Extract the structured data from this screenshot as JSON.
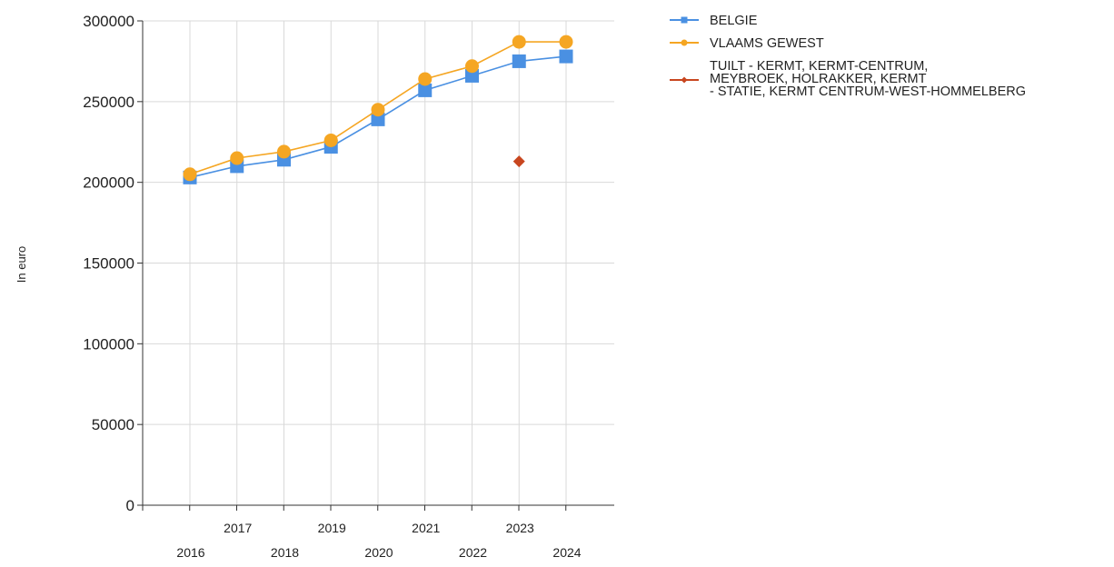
{
  "chart_data": {
    "type": "line",
    "title": "",
    "xlabel": "",
    "ylabel": "In euro",
    "categories": [
      "2016",
      "2017",
      "2018",
      "2019",
      "2020",
      "2021",
      "2022",
      "2023",
      "2024"
    ],
    "ylim": [
      0,
      300000
    ],
    "yticks": [
      "0",
      "50000",
      "100000",
      "150000",
      "200000",
      "250000",
      "300000"
    ],
    "grid": true,
    "legend_position": "right",
    "series": [
      {
        "name": "BELGIE",
        "color": "#4a90e2",
        "marker": "square",
        "values": [
          203000,
          210000,
          214000,
          222000,
          239000,
          257000,
          266000,
          275000,
          278000
        ]
      },
      {
        "name": "VLAAMS GEWEST",
        "color": "#f5a623",
        "marker": "circle",
        "values": [
          205000,
          215000,
          219000,
          226000,
          245000,
          264000,
          272000,
          287000,
          287000
        ]
      },
      {
        "name": "TUILT - KERMT, KERMT-CENTRUM, MEYBROEK, HOLRAKKER, KERMT - STATIE, KERMT CENTRUM-WEST-HOMMELBERG",
        "name_lines": [
          "TUILT - KERMT, KERMT-CENTRUM,",
          "MEYBROEK, HOLRAKKER, KERMT",
          "- STATIE, KERMT CENTRUM-WEST-HOMMELBERG"
        ],
        "color": "#c8461f",
        "marker": "diamond",
        "values": [
          null,
          null,
          null,
          null,
          null,
          null,
          null,
          213000,
          null
        ]
      }
    ]
  }
}
